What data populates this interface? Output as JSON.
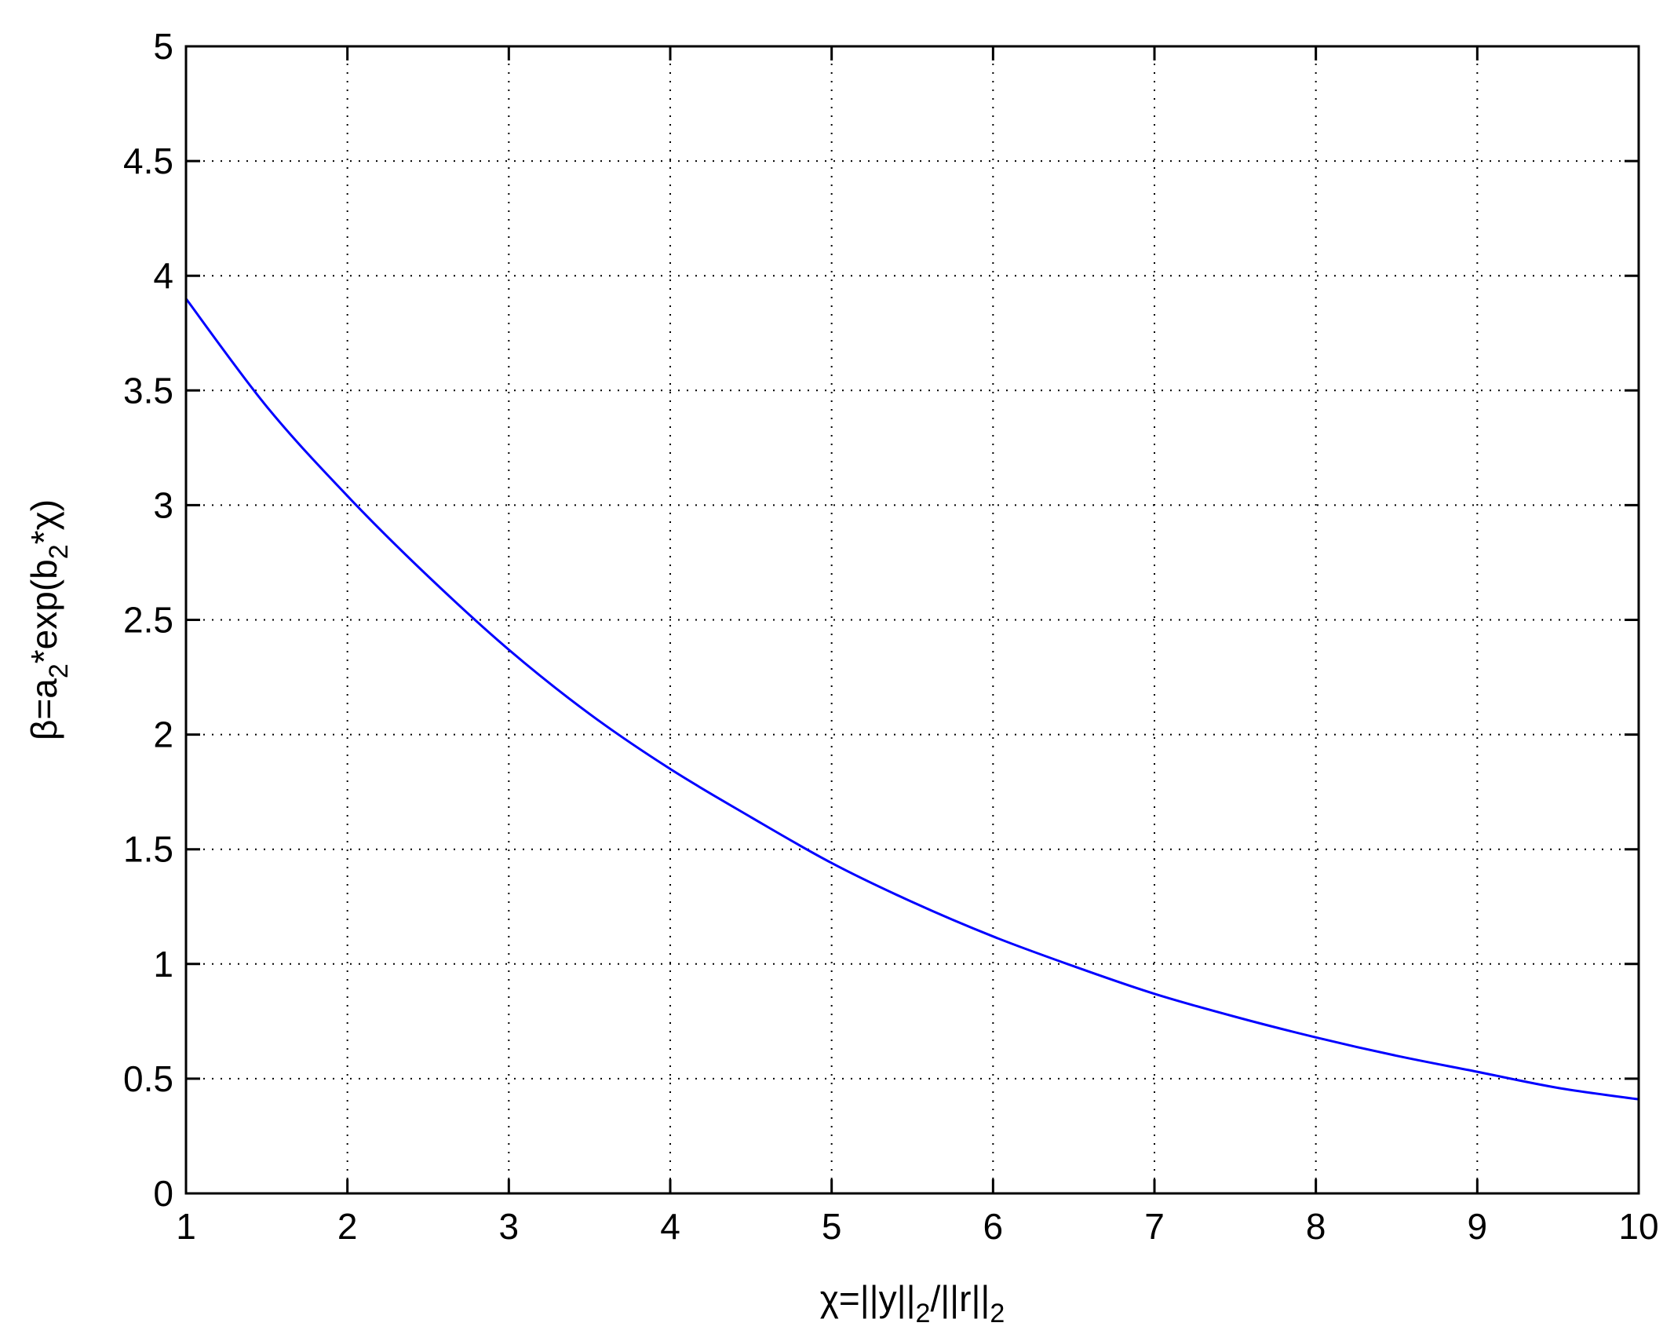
{
  "chart_data": {
    "type": "line",
    "xlabel": {
      "pre": "χ=||y||",
      "sub1": "2",
      "mid": "/||r||",
      "sub2": "2"
    },
    "ylabel": {
      "pre": "β=a",
      "sub1": "2",
      "mid": "*exp(b",
      "sub2": "2",
      "post": "*χ)"
    },
    "xlim": [
      1,
      10
    ],
    "ylim": [
      0,
      5
    ],
    "xticks": [
      1,
      2,
      3,
      4,
      5,
      6,
      7,
      8,
      9,
      10
    ],
    "xtick_labels": [
      "1",
      "2",
      "3",
      "4",
      "5",
      "6",
      "7",
      "8",
      "9",
      "10"
    ],
    "yticks": [
      0,
      0.5,
      1,
      1.5,
      2,
      2.5,
      3,
      3.5,
      4,
      4.5,
      5
    ],
    "ytick_labels": [
      "0",
      "0.5",
      "1",
      "1.5",
      "2",
      "2.5",
      "3",
      "3.5",
      "4",
      "4.5",
      "5"
    ],
    "grid": true,
    "series": [
      {
        "color": "#0000ff",
        "x": [
          1,
          1.5,
          2,
          2.5,
          3,
          3.5,
          4,
          4.5,
          5,
          5.5,
          6,
          6.5,
          7,
          7.5,
          8,
          8.5,
          9,
          9.5,
          10
        ],
        "y": [
          3.9,
          3.43,
          3.04,
          2.69,
          2.37,
          2.09,
          1.85,
          1.64,
          1.44,
          1.27,
          1.12,
          0.99,
          0.87,
          0.77,
          0.68,
          0.6,
          0.53,
          0.46,
          0.41
        ]
      }
    ]
  }
}
